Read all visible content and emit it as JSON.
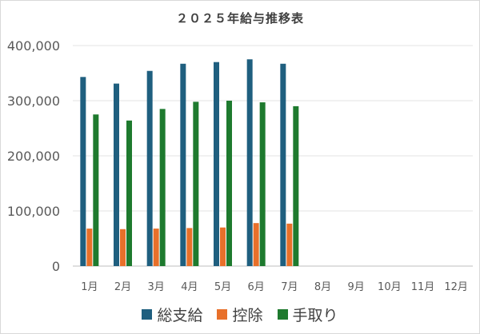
{
  "chart_data": {
    "type": "bar",
    "title": "２０２５年給与推移表",
    "categories": [
      "1月",
      "2月",
      "3月",
      "4月",
      "5月",
      "6月",
      "7月",
      "8月",
      "9月",
      "10月",
      "11月",
      "12月"
    ],
    "series": [
      {
        "name": "総支給",
        "color": "#1f5f7f",
        "values": [
          343000,
          331000,
          354000,
          367000,
          370000,
          375000,
          367000,
          null,
          null,
          null,
          null,
          null
        ]
      },
      {
        "name": "控除",
        "color": "#e8702a",
        "values": [
          68000,
          67000,
          68000,
          69000,
          70000,
          78000,
          77000,
          null,
          null,
          null,
          null,
          null
        ]
      },
      {
        "name": "手取り",
        "color": "#1e7a2e",
        "values": [
          275000,
          264000,
          285000,
          298000,
          300000,
          297000,
          290000,
          null,
          null,
          null,
          null,
          null
        ]
      }
    ],
    "ylim": [
      0,
      400000
    ],
    "yticks": [
      "0",
      "100,000",
      "200,000",
      "300,000",
      "400,000"
    ],
    "ytick_values": [
      0,
      100000,
      200000,
      300000,
      400000
    ],
    "grid": true,
    "legend_position": "bottom"
  }
}
